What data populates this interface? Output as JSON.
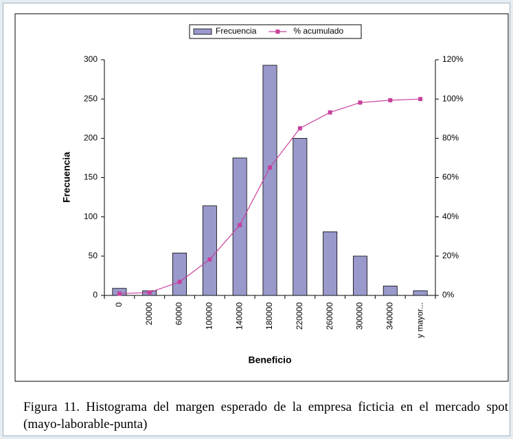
{
  "chart_data": {
    "type": "bar",
    "x_label": "Beneficio",
    "y_label": "Frecuencia",
    "categories": [
      "0",
      "20000",
      "60000",
      "100000",
      "140000",
      "180000",
      "220000",
      "260000",
      "300000",
      "340000",
      "y mayor..."
    ],
    "series": [
      {
        "name": "Frecuencia",
        "type": "bar",
        "color": "#9999cc",
        "values": [
          9,
          6,
          54,
          114,
          175,
          293,
          200,
          81,
          50,
          12,
          6
        ]
      },
      {
        "name": "% acumulado",
        "type": "line",
        "axis": "y2",
        "color": "#c8409c",
        "values": [
          0.9,
          1.5,
          6.9,
          18.3,
          35.8,
          65.1,
          85.1,
          93.2,
          98.2,
          99.4,
          100
        ]
      }
    ],
    "ylim": [
      0,
      300
    ],
    "yticks": [
      0,
      50,
      100,
      150,
      200,
      250,
      300
    ],
    "y2lim": [
      0,
      120
    ],
    "y2ticks": [
      {
        "value": 0,
        "label": "0%"
      },
      {
        "value": 20,
        "label": "20%"
      },
      {
        "value": 40,
        "label": "40%"
      },
      {
        "value": 60,
        "label": "60%"
      },
      {
        "value": 80,
        "label": "80%"
      },
      {
        "value": 100,
        "label": "100%"
      },
      {
        "value": 120,
        "label": "120%"
      }
    ],
    "legend": "top"
  },
  "caption": "Figura 11. Histograma del margen esperado de la empresa ficticia en el mercado spot (mayo-laborable-punta)"
}
